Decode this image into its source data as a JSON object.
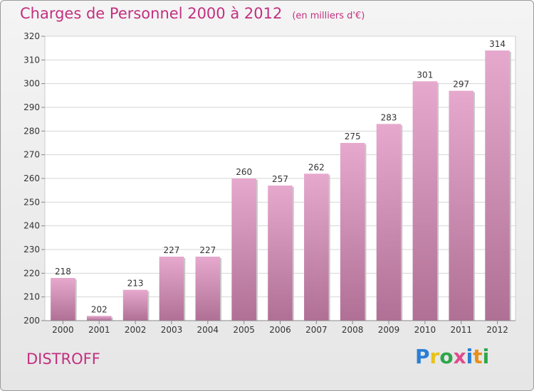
{
  "header": {
    "title": "Charges de Personnel 2000 à 2012",
    "unit_note": "(en milliers d'€)"
  },
  "footer": {
    "commune": "DISTROFF",
    "logo_letters": [
      "P",
      "r",
      "o",
      "x",
      "i",
      "t",
      "i"
    ]
  },
  "colors": {
    "bar_top": "#e6a9cd",
    "bar_bottom": "#b07095",
    "title": "#c2307f",
    "grid": "#d4d4d4"
  },
  "chart_data": {
    "type": "bar",
    "title": "Charges de Personnel 2000 à 2012",
    "subtitle": "(en milliers d'€)",
    "xlabel": "",
    "ylabel": "",
    "categories": [
      "2000",
      "2001",
      "2002",
      "2003",
      "2004",
      "2005",
      "2006",
      "2007",
      "2008",
      "2009",
      "2010",
      "2011",
      "2012"
    ],
    "values": [
      218,
      202,
      213,
      227,
      227,
      260,
      257,
      262,
      275,
      283,
      301,
      297,
      314
    ],
    "ylim": [
      200,
      320
    ],
    "yticks": [
      200,
      210,
      220,
      230,
      240,
      250,
      260,
      270,
      280,
      290,
      300,
      310,
      320
    ],
    "grid": true,
    "legend": "none"
  }
}
